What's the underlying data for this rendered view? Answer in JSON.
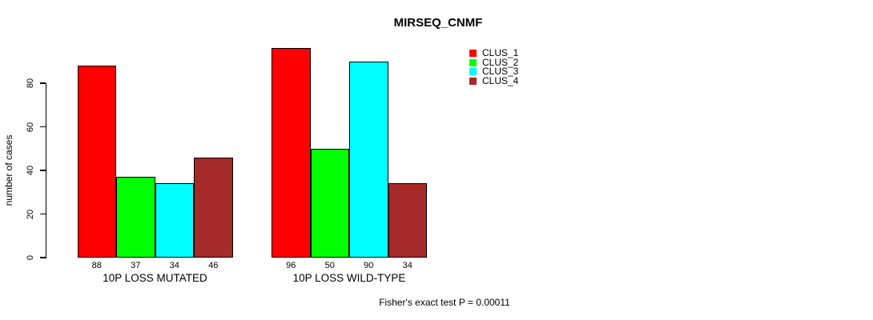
{
  "chart_data": {
    "type": "bar",
    "title": "MIRSEQ_CNMF",
    "xlabel": "",
    "ylabel": "number of cases",
    "categories": [
      "10P LOSS MUTATED",
      "10P LOSS WILD-TYPE"
    ],
    "series": [
      {
        "name": "CLUS_1",
        "color": "#ff0000",
        "values": [
          88,
          96
        ]
      },
      {
        "name": "CLUS_2",
        "color": "#00ff00",
        "values": [
          37,
          50
        ]
      },
      {
        "name": "CLUS_3",
        "color": "#00ffff",
        "values": [
          34,
          90
        ]
      },
      {
        "name": "CLUS_4",
        "color": "#a52a2a",
        "values": [
          46,
          34
        ]
      }
    ],
    "ylim": [
      0,
      80
    ],
    "yticks": [
      0,
      20,
      40,
      60,
      80
    ],
    "grid": false,
    "legend_position": "top-right",
    "legend": [
      "CLUS_1",
      "CLUS_2",
      "CLUS_3",
      "CLUS_4"
    ],
    "bar_value_labels": true,
    "annotation": "Fisher's exact test P = 0.00011",
    "colors": {
      "background": "#ffffff",
      "axis": "#000000",
      "bar_border": "#000000",
      "text": "#000000"
    }
  }
}
